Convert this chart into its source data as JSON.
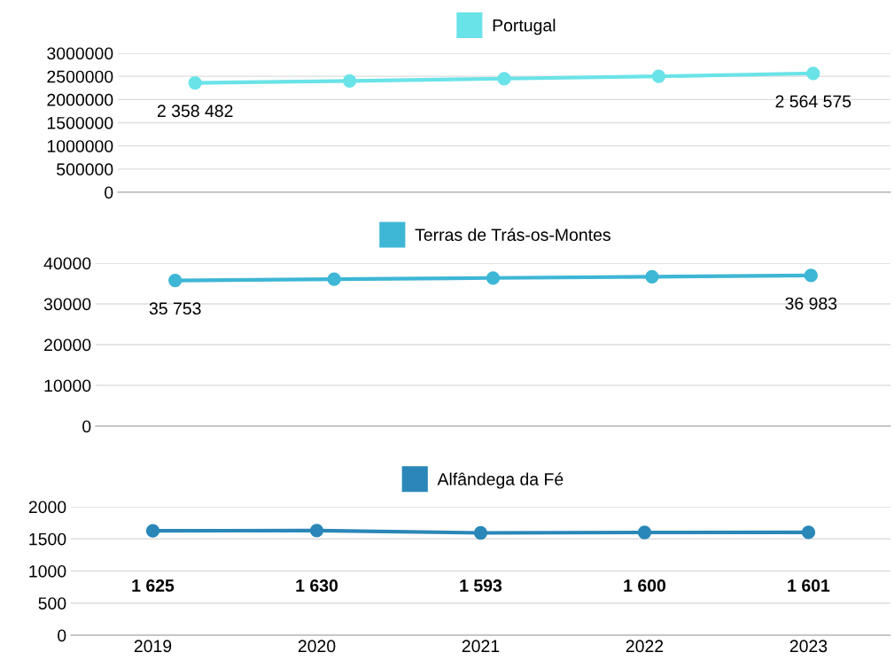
{
  "chart_data": [
    {
      "type": "line",
      "categories": [
        "2019",
        "2020",
        "2021",
        "2022",
        "2023"
      ],
      "series": [
        {
          "name": "Portugal",
          "color": "#6ae3e8",
          "values": [
            2358482,
            2400000,
            2450000,
            2500000,
            2564575
          ],
          "value_labels": [
            "2 358 482",
            null,
            null,
            null,
            "2 564 575"
          ]
        }
      ],
      "ylim": [
        0,
        3000000
      ],
      "yticks": [
        0,
        500000,
        1000000,
        1500000,
        2000000,
        2500000,
        3000000
      ],
      "grid": "y",
      "legend": "top",
      "marker": "circle",
      "line_style": "solid",
      "tick_labels": "y"
    },
    {
      "type": "line",
      "categories": [
        "2019",
        "2020",
        "2021",
        "2022",
        "2023"
      ],
      "series": [
        {
          "name": "Terras de Trás-os-Montes",
          "color": "#3eb6d6",
          "values": [
            35753,
            36050,
            36350,
            36650,
            36983
          ],
          "value_labels": [
            "35 753",
            null,
            null,
            null,
            "36 983"
          ]
        }
      ],
      "ylim": [
        0,
        40000
      ],
      "yticks": [
        0,
        10000,
        20000,
        30000,
        40000
      ],
      "grid": "y",
      "legend": "top",
      "marker": "circle",
      "line_style": "solid",
      "tick_labels": "y"
    },
    {
      "type": "line",
      "categories": [
        "2019",
        "2020",
        "2021",
        "2022",
        "2023"
      ],
      "series": [
        {
          "name": "Alfândega da Fé",
          "color": "#2a87b8",
          "values": [
            1625,
            1630,
            1593,
            1600,
            1601
          ],
          "value_labels": [
            "1 625",
            "1 630",
            "1 593",
            "1 600",
            "1 601"
          ]
        }
      ],
      "ylim": [
        0,
        2000
      ],
      "yticks": [
        0,
        500,
        1000,
        1500,
        2000
      ],
      "grid": "y",
      "legend": "top",
      "marker": "circle",
      "line_style": "solid"
    }
  ]
}
